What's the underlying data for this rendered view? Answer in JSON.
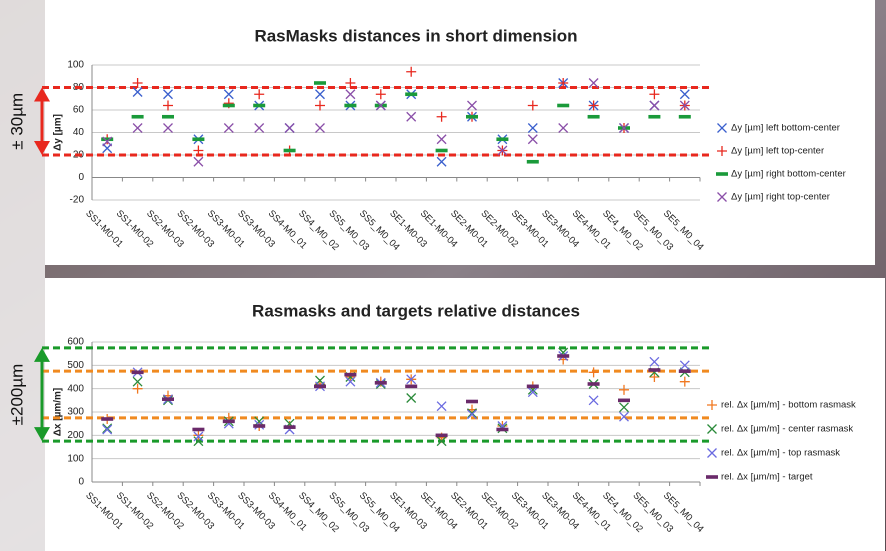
{
  "chart_data": [
    {
      "type": "scatter",
      "title": "RasMasks distances in short dimension",
      "y_label": "Δy [µm]",
      "annotation": {
        "text": "± 30µm",
        "color": "#e8281e"
      },
      "categories": [
        "SS1-M0-01",
        "SS1-M0-02",
        "SS2-M0-03",
        "SS2-M0-03",
        "SS3-M0-01",
        "SS3-M0-03",
        "SS4-M0_01",
        "SS4_M0_02",
        "SS5_M0_03",
        "SS5_M0_04",
        "SE1-M0-03",
        "SE1-M0-04",
        "SE2-M0-01",
        "SE2-M0-02",
        "SE3-M0-01",
        "SE3-M0-04",
        "SE4-M0_01",
        "SE4_M0_02",
        "SE5_M0_03",
        "SE5_M0_04"
      ],
      "ylim": [
        -20,
        100
      ],
      "yticks": [
        -20,
        0,
        20,
        40,
        60,
        80,
        100
      ],
      "grid": true,
      "legend": "right",
      "reference_lines": [
        {
          "value": 80,
          "color": "#e8281e"
        },
        {
          "value": 20,
          "color": "#e8281e"
        }
      ],
      "series": [
        {
          "name": "Δy [µm] left bottom-center",
          "color": "#3a5fcd",
          "marker": "x",
          "values": [
            26,
            76,
            74,
            34,
            74,
            64,
            44,
            74,
            64,
            64,
            74,
            14,
            54,
            34,
            44,
            84,
            64,
            44,
            64,
            74
          ]
        },
        {
          "name": "Δy [µm] left top-center",
          "color": "#e8281e",
          "marker": "+",
          "values": [
            34,
            84,
            64,
            24,
            66,
            74,
            24,
            64,
            84,
            74,
            94,
            54,
            54,
            24,
            64,
            84,
            64,
            44,
            74,
            64
          ]
        },
        {
          "name": "Δy [µm] right bottom-center",
          "color": "#1a9a3a",
          "marker": "dash",
          "values": [
            34,
            54,
            54,
            34,
            64,
            64,
            24,
            84,
            64,
            64,
            74,
            24,
            54,
            34,
            14,
            64,
            54,
            44,
            54,
            54
          ]
        },
        {
          "name": "Δy [µm] right top-center",
          "color": "#8a4fa8",
          "marker": "x",
          "values": [
            32,
            44,
            44,
            14,
            44,
            44,
            44,
            44,
            74,
            64,
            54,
            34,
            64,
            24,
            34,
            44,
            84,
            44,
            64,
            64
          ]
        }
      ]
    },
    {
      "type": "scatter",
      "title": "Rasmasks and targets relative distances",
      "y_label": "Δx [µm/m]",
      "annotation": {
        "text": "±200µm",
        "color": "#1a9a2a"
      },
      "categories": [
        "SS1-M0-01",
        "SS1-M0-02",
        "SS2-M0-02",
        "SS2-M0-03",
        "SS3-M0-01",
        "SS3-M0-03",
        "SS4-M0_01",
        "SS4_M0_02",
        "SS5_M0_03",
        "SS5_M0_04",
        "SE1-M0-03",
        "SE1-M0-04",
        "SE2-M0-01",
        "SE2-M0-02",
        "SE3-M0-01",
        "SE3-M0-04",
        "SE4-M0_01",
        "SE4_M0_02",
        "SE5_M0_03",
        "SE5_M0_04"
      ],
      "ylim": [
        0,
        600
      ],
      "yticks": [
        0,
        100,
        200,
        300,
        400,
        500,
        600
      ],
      "grid": true,
      "legend": "right",
      "reference_lines": [
        {
          "value": 575,
          "color": "#1a9a2a"
        },
        {
          "value": 175,
          "color": "#1a9a2a"
        },
        {
          "value": 475,
          "color": "#f08a20"
        },
        {
          "value": 275,
          "color": "#f08a20"
        }
      ],
      "series": [
        {
          "name": "rel. Δx [µm/m] - bottom rasmask",
          "color": "#f07820",
          "marker": "+",
          "values": [
            270,
            400,
            370,
            200,
            275,
            240,
            240,
            420,
            450,
            430,
            440,
            190,
            310,
            240,
            410,
            525,
            470,
            395,
            450,
            430
          ]
        },
        {
          "name": "rel. Δx [µm/m] - center rasmask",
          "color": "#2a8a3a",
          "marker": "x",
          "values": [
            230,
            430,
            350,
            175,
            260,
            260,
            250,
            435,
            450,
            420,
            360,
            175,
            295,
            230,
            395,
            555,
            420,
            320,
            470,
            470
          ]
        },
        {
          "name": "rel. Δx [µm/m] - top rasmask",
          "color": "#6a6ae0",
          "marker": "x",
          "values": [
            225,
            470,
            355,
            195,
            250,
            245,
            225,
            410,
            430,
            425,
            440,
            325,
            290,
            240,
            385,
            540,
            350,
            280,
            515,
            500
          ]
        },
        {
          "name": "rel. Δx [µm/m] - target",
          "color": "#6a2a6a",
          "marker": "dash",
          "values": [
            270,
            470,
            355,
            225,
            260,
            240,
            235,
            410,
            460,
            425,
            410,
            200,
            345,
            225,
            410,
            540,
            420,
            350,
            480,
            475
          ]
        }
      ]
    }
  ]
}
